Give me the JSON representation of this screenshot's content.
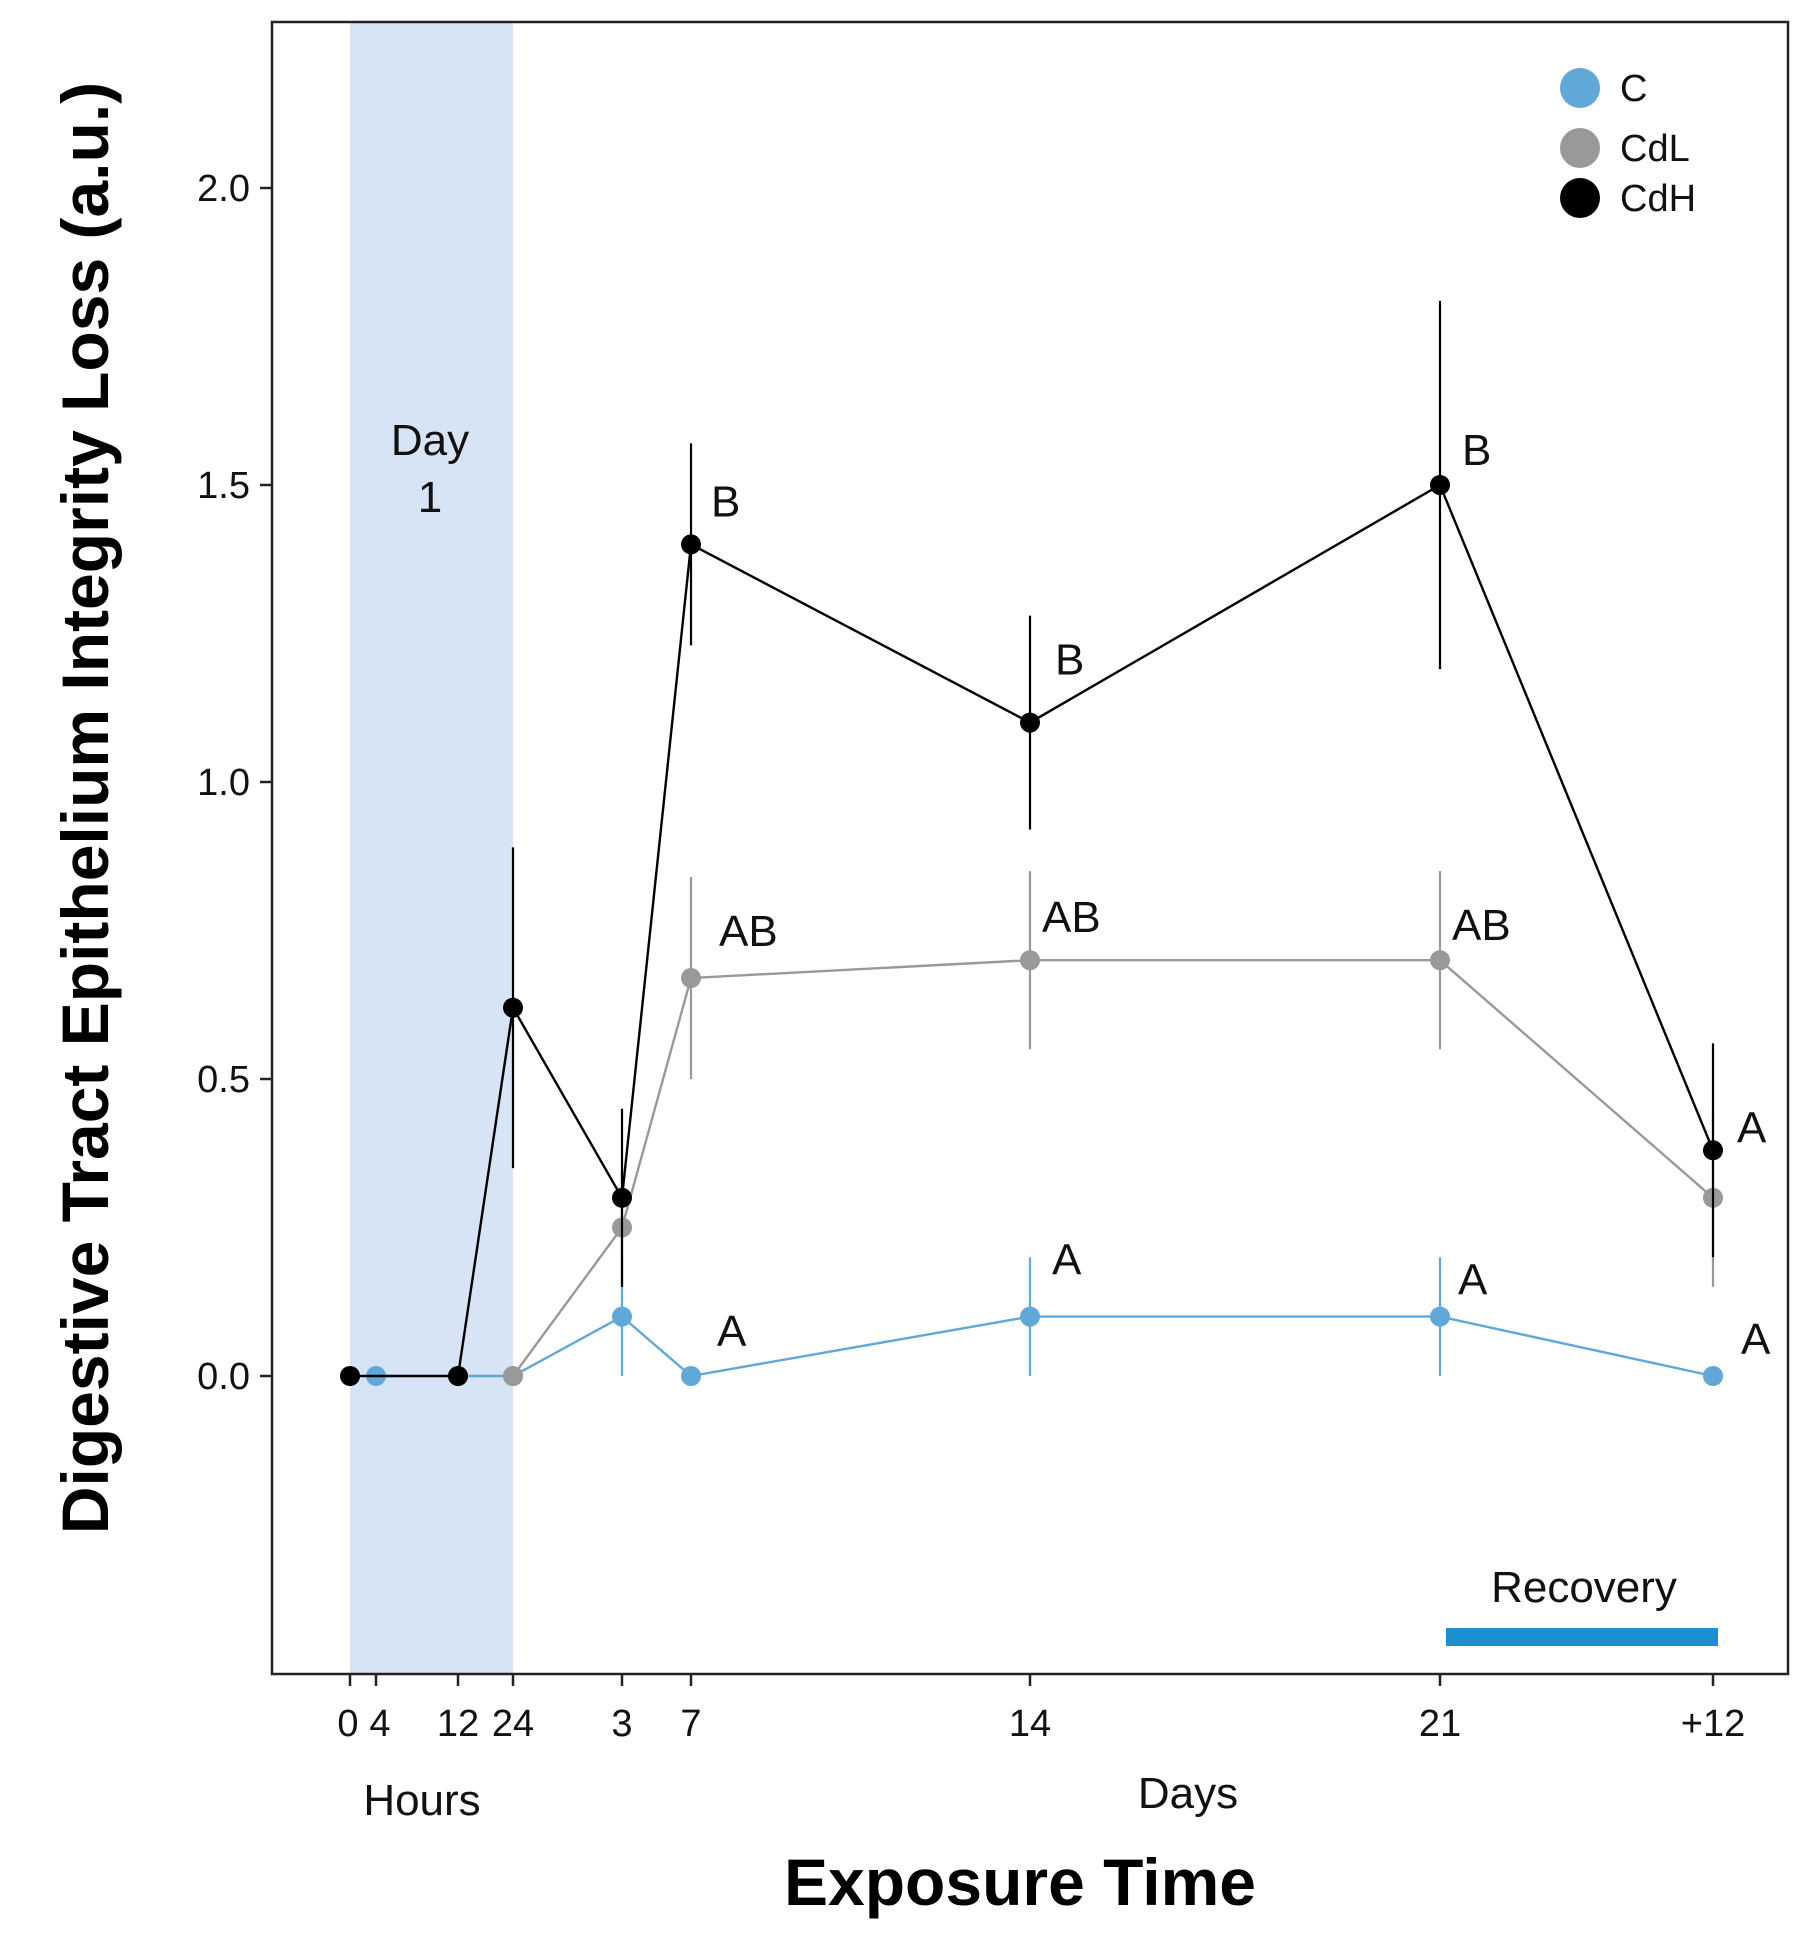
{
  "chart_data": {
    "type": "line",
    "title": "",
    "xlabel": "Exposure Time",
    "ylabel": "Digestive Tract  Epithelium Integrity Loss (a.u.)",
    "ylim": [
      -0.5,
      2.25
    ],
    "yticks": [
      "2.0",
      "1.5",
      "1.0",
      "0.5",
      "0.0"
    ],
    "ytick_values": [
      2.0,
      1.5,
      1.0,
      0.5,
      0.0
    ],
    "x_categories": [
      "0",
      "4",
      "12",
      "24",
      "3",
      "7",
      "14",
      "21",
      "+12"
    ],
    "x_group_labels": {
      "hours": "Hours",
      "days": "Days"
    },
    "shaded_region": {
      "label_line1": "Day",
      "label_line2": "1",
      "from": "0",
      "to": "24"
    },
    "recovery": {
      "label": "Recovery",
      "color": "#1b8fd2"
    },
    "legend": [
      {
        "name": "C",
        "color": "#5fa8d8"
      },
      {
        "name": "CdL",
        "color": "#999999"
      },
      {
        "name": "CdH",
        "color": "#000000"
      }
    ],
    "series": [
      {
        "name": "C",
        "color": "#5fa8d8",
        "x": [
          "4",
          "12",
          "24",
          "3",
          "7",
          "14",
          "21",
          "+12"
        ],
        "values": [
          0.0,
          0.0,
          0.0,
          0.1,
          0.0,
          0.1,
          0.1,
          0.0
        ],
        "errors": [
          0,
          0,
          0,
          0.1,
          0,
          0.1,
          0.1,
          0
        ],
        "sig_labels": [
          "",
          "",
          "",
          "",
          "A",
          "A",
          "A",
          "A"
        ]
      },
      {
        "name": "CdL",
        "color": "#999999",
        "x": [
          "24",
          "3",
          "7",
          "14",
          "21",
          "+12"
        ],
        "values": [
          0.0,
          0.25,
          0.67,
          0.7,
          0.7,
          0.3
        ],
        "errors": [
          0,
          0.1,
          0.17,
          0.15,
          0.15,
          0.15
        ],
        "sig_labels": [
          "",
          "",
          "AB",
          "AB",
          "AB",
          ""
        ]
      },
      {
        "name": "CdH",
        "color": "#000000",
        "x": [
          "0",
          "12",
          "24",
          "3",
          "7",
          "14",
          "21",
          "+12"
        ],
        "values": [
          0.0,
          0.0,
          0.62,
          0.3,
          1.4,
          1.1,
          1.5,
          0.38
        ],
        "errors": [
          0,
          0,
          0.27,
          0.15,
          0.17,
          0.18,
          0.31,
          0.18
        ],
        "sig_labels": [
          "",
          "",
          "",
          "",
          "B",
          "B",
          "B",
          "A"
        ]
      }
    ]
  }
}
